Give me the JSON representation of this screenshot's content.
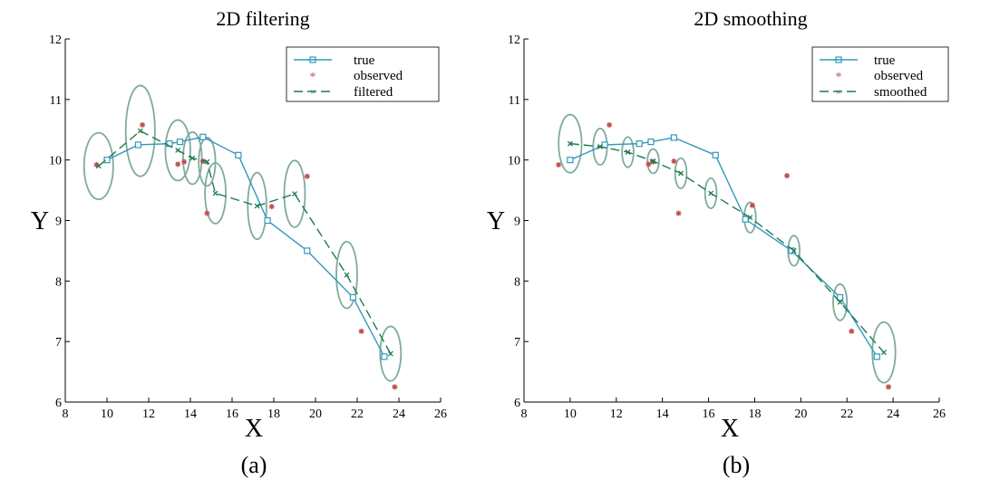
{
  "chart_data": [
    {
      "type": "line",
      "title": "2D filtering",
      "caption": "(a)",
      "xlabel": "X",
      "ylabel": "Y",
      "xlim": [
        8,
        26
      ],
      "ylim": [
        6,
        12
      ],
      "xticks": [
        "8",
        "10",
        "12",
        "14",
        "16",
        "18",
        "20",
        "22",
        "24",
        "26"
      ],
      "yticks": [
        "6",
        "7",
        "8",
        "9",
        "10",
        "11",
        "12"
      ],
      "grid": false,
      "legend_position": "top-right",
      "colors": {
        "true": "#3399bb",
        "observed": "#c0504d",
        "estimate": "#1f7a4f",
        "ellipse": "#7fab9c"
      },
      "legend": [
        "true",
        "observed",
        "filtered"
      ],
      "series": [
        {
          "name": "true",
          "style": "solid-square",
          "points": [
            [
              10.0,
              10.0
            ],
            [
              11.5,
              10.25
            ],
            [
              13.0,
              10.27
            ],
            [
              13.5,
              10.3
            ],
            [
              14.6,
              10.38
            ],
            [
              16.3,
              10.08
            ],
            [
              17.7,
              9.0
            ],
            [
              19.6,
              8.5
            ],
            [
              21.8,
              7.73
            ],
            [
              23.3,
              6.75
            ]
          ]
        },
        {
          "name": "observed",
          "style": "star",
          "points": [
            [
              9.5,
              9.92
            ],
            [
              11.7,
              10.58
            ],
            [
              13.4,
              9.93
            ],
            [
              13.7,
              9.97
            ],
            [
              14.6,
              9.98
            ],
            [
              14.8,
              9.12
            ],
            [
              17.9,
              9.23
            ],
            [
              19.6,
              9.73
            ],
            [
              22.2,
              7.17
            ],
            [
              23.8,
              6.25
            ]
          ]
        },
        {
          "name": "filtered",
          "style": "dashed-x",
          "points": [
            [
              9.6,
              9.9
            ],
            [
              11.6,
              10.48
            ],
            [
              13.4,
              10.16
            ],
            [
              14.1,
              10.03
            ],
            [
              14.8,
              9.97
            ],
            [
              15.2,
              9.45
            ],
            [
              17.2,
              9.24
            ],
            [
              19.0,
              9.44
            ],
            [
              21.5,
              8.1
            ],
            [
              23.6,
              6.8
            ]
          ]
        }
      ],
      "uncertainty_ellipses": [
        {
          "center": [
            9.6,
            9.9
          ],
          "rx": 0.7,
          "ry": 0.55
        },
        {
          "center": [
            11.6,
            10.48
          ],
          "rx": 0.7,
          "ry": 0.75
        },
        {
          "center": [
            13.4,
            10.16
          ],
          "rx": 0.6,
          "ry": 0.5
        },
        {
          "center": [
            14.1,
            10.03
          ],
          "rx": 0.45,
          "ry": 0.43
        },
        {
          "center": [
            14.8,
            9.97
          ],
          "rx": 0.4,
          "ry": 0.4
        },
        {
          "center": [
            15.2,
            9.45
          ],
          "rx": 0.5,
          "ry": 0.5
        },
        {
          "center": [
            17.2,
            9.24
          ],
          "rx": 0.45,
          "ry": 0.55
        },
        {
          "center": [
            19.0,
            9.44
          ],
          "rx": 0.5,
          "ry": 0.55
        },
        {
          "center": [
            21.5,
            8.1
          ],
          "rx": 0.5,
          "ry": 0.55
        },
        {
          "center": [
            23.6,
            6.8
          ],
          "rx": 0.5,
          "ry": 0.45
        }
      ]
    },
    {
      "type": "line",
      "title": "2D smoothing",
      "caption": "(b)",
      "xlabel": "X",
      "ylabel": "Y",
      "xlim": [
        8,
        26
      ],
      "ylim": [
        6,
        12
      ],
      "xticks": [
        "8",
        "10",
        "12",
        "14",
        "16",
        "18",
        "20",
        "22",
        "24",
        "26"
      ],
      "yticks": [
        "6",
        "7",
        "8",
        "9",
        "10",
        "11",
        "12"
      ],
      "grid": false,
      "legend_position": "top-right",
      "colors": {
        "true": "#3399bb",
        "observed": "#c0504d",
        "estimate": "#1f7a4f",
        "ellipse": "#7fab9c"
      },
      "legend": [
        "true",
        "observed",
        "smoothed"
      ],
      "series": [
        {
          "name": "true",
          "style": "solid-square",
          "points": [
            [
              10.0,
              10.0
            ],
            [
              11.5,
              10.25
            ],
            [
              13.0,
              10.27
            ],
            [
              13.5,
              10.3
            ],
            [
              14.5,
              10.37
            ],
            [
              16.3,
              10.08
            ],
            [
              17.6,
              9.02
            ],
            [
              19.6,
              8.5
            ],
            [
              21.7,
              7.73
            ],
            [
              23.3,
              6.75
            ]
          ]
        },
        {
          "name": "observed",
          "style": "star",
          "points": [
            [
              9.5,
              9.92
            ],
            [
              11.7,
              10.58
            ],
            [
              13.4,
              9.93
            ],
            [
              13.6,
              9.97
            ],
            [
              14.5,
              9.98
            ],
            [
              14.7,
              9.12
            ],
            [
              17.9,
              9.25
            ],
            [
              19.4,
              9.74
            ],
            [
              22.2,
              7.17
            ],
            [
              23.8,
              6.25
            ]
          ]
        },
        {
          "name": "smoothed",
          "style": "dashed-x",
          "points": [
            [
              10.0,
              10.27
            ],
            [
              11.3,
              10.22
            ],
            [
              12.5,
              10.13
            ],
            [
              13.6,
              9.98
            ],
            [
              14.8,
              9.78
            ],
            [
              16.1,
              9.45
            ],
            [
              17.8,
              9.05
            ],
            [
              19.7,
              8.5
            ],
            [
              21.7,
              7.65
            ],
            [
              23.6,
              6.82
            ]
          ]
        }
      ],
      "uncertainty_ellipses": [
        {
          "center": [
            10.0,
            10.27
          ],
          "rx": 0.5,
          "ry": 0.48
        },
        {
          "center": [
            11.3,
            10.22
          ],
          "rx": 0.3,
          "ry": 0.3
        },
        {
          "center": [
            12.5,
            10.13
          ],
          "rx": 0.25,
          "ry": 0.25
        },
        {
          "center": [
            13.6,
            9.98
          ],
          "rx": 0.25,
          "ry": 0.2
        },
        {
          "center": [
            14.8,
            9.78
          ],
          "rx": 0.25,
          "ry": 0.25
        },
        {
          "center": [
            16.1,
            9.45
          ],
          "rx": 0.25,
          "ry": 0.25
        },
        {
          "center": [
            17.8,
            9.05
          ],
          "rx": 0.25,
          "ry": 0.25
        },
        {
          "center": [
            19.7,
            8.5
          ],
          "rx": 0.25,
          "ry": 0.25
        },
        {
          "center": [
            21.7,
            7.65
          ],
          "rx": 0.3,
          "ry": 0.3
        },
        {
          "center": [
            23.6,
            6.82
          ],
          "rx": 0.5,
          "ry": 0.5
        }
      ]
    }
  ]
}
